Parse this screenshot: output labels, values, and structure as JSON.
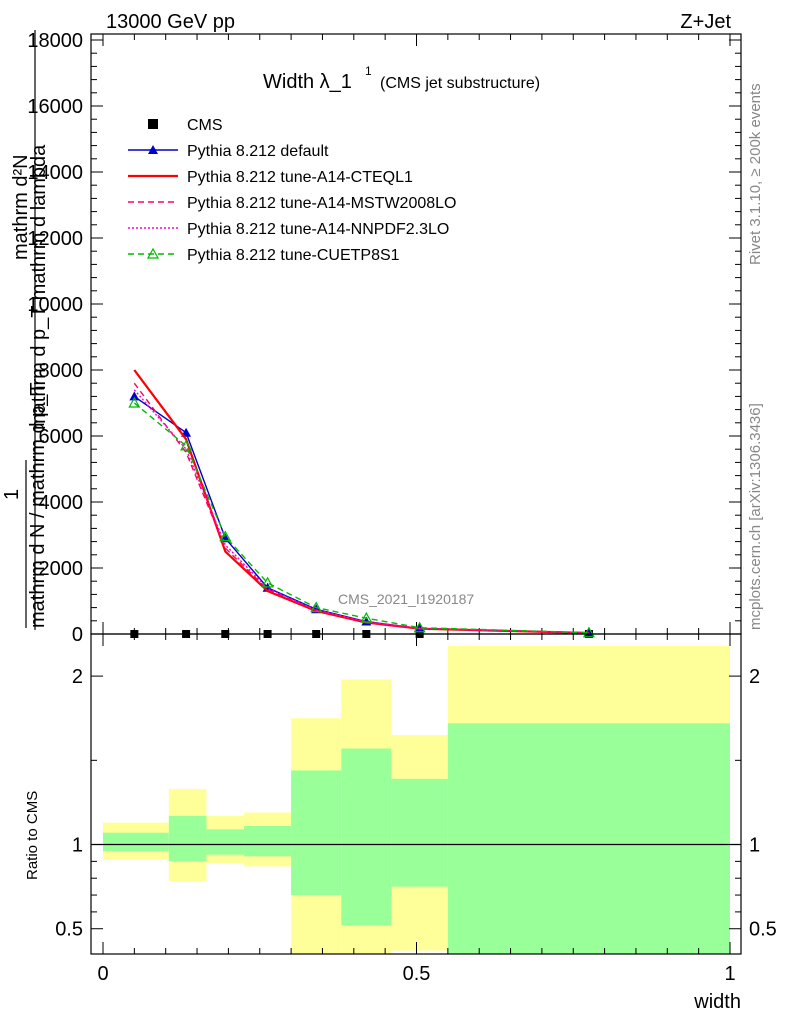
{
  "header": {
    "left": "13000 GeV pp",
    "right": "Z+Jet"
  },
  "side": {
    "rivet": "Rivet 3.1.10, ≥ 200k events",
    "mcplots": "mcplots.cern.ch [arXiv:1306.3436]"
  },
  "watermark": "CMS_2021_I1920187",
  "chart_data": [
    {
      "type": "line",
      "title_main": "Width λ_1",
      "title_sup": "1",
      "title_sub": "(CMS jet substructure)",
      "ylabel_top": "mathrm d²N",
      "ylabel_top2": "mathrm d p_T mathrm d lambda",
      "ylabel_one": "1",
      "ylabel_bottom": "mathrm d N / mathrm d p_T",
      "xlim": [
        0,
        1
      ],
      "ylim": [
        0,
        18000
      ],
      "yticks": [
        "0",
        "2000",
        "4000",
        "6000",
        "8000",
        "10000",
        "12000",
        "14000",
        "16000",
        "18000"
      ],
      "bins": [
        0,
        0.1,
        0.165,
        0.225,
        0.3,
        0.38,
        0.46,
        0.55,
        1.0
      ],
      "series": [
        {
          "name": "CMS",
          "style": "data",
          "color": "#000000",
          "x": [
            0.05,
            0.1325,
            0.195,
            0.2625,
            0.34,
            0.42,
            0.505,
            0.775
          ],
          "y": [
            0,
            0,
            0,
            0,
            0,
            0,
            0,
            0
          ]
        },
        {
          "name": "Pythia 8.212 default",
          "style": "solid-triangle",
          "color": "#0000cc",
          "x": [
            0.05,
            0.1325,
            0.195,
            0.2625,
            0.34,
            0.42,
            0.505,
            0.775
          ],
          "y": [
            7200,
            6100,
            2900,
            1400,
            750,
            380,
            170,
            35
          ]
        },
        {
          "name": "Pythia 8.212 tune-A14-CTEQL1",
          "style": "solid-thick",
          "color": "#ff0000",
          "x": [
            0.05,
            0.1325,
            0.195,
            0.2625,
            0.34,
            0.42,
            0.505,
            0.775
          ],
          "y": [
            8000,
            5900,
            2500,
            1300,
            700,
            350,
            160,
            30
          ]
        },
        {
          "name": "Pythia 8.212 tune-A14-MSTW2008LO",
          "style": "dashed",
          "color": "#ff0066",
          "x": [
            0.05,
            0.1325,
            0.195,
            0.2625,
            0.34,
            0.42,
            0.505,
            0.775
          ],
          "y": [
            7600,
            5500,
            2600,
            1350,
            720,
            360,
            165,
            32
          ]
        },
        {
          "name": "Pythia 8.212 tune-A14-NNPDF2.3LO",
          "style": "dotted",
          "color": "#ff00cc",
          "x": [
            0.05,
            0.1325,
            0.195,
            0.2625,
            0.34,
            0.42,
            0.505,
            0.775
          ],
          "y": [
            7400,
            5600,
            2700,
            1380,
            730,
            370,
            168,
            33
          ]
        },
        {
          "name": "Pythia 8.212 tune-CUETP8S1",
          "style": "dashed-triangle",
          "color": "#00bb00",
          "x": [
            0.05,
            0.1325,
            0.195,
            0.2625,
            0.34,
            0.42,
            0.505,
            0.775
          ],
          "y": [
            7000,
            5700,
            2950,
            1550,
            800,
            480,
            190,
            38
          ]
        }
      ]
    },
    {
      "type": "area",
      "ylabel": "Ratio to CMS",
      "xlabel": "width",
      "xlim": [
        0,
        1
      ],
      "ylim": [
        0.35,
        2.25
      ],
      "xticks": [
        "0",
        "0.5",
        "1"
      ],
      "yticks": [
        "0.5",
        "1",
        "2"
      ],
      "reference": 1.0,
      "bands": [
        {
          "x0": 0.0,
          "x1": 0.105,
          "y_lo": 0.91,
          "y_hi": 1.13,
          "g_lo": 0.96,
          "g_hi": 1.07
        },
        {
          "x0": 0.105,
          "x1": 0.165,
          "y_lo": 0.78,
          "y_hi": 1.33,
          "g_lo": 0.9,
          "g_hi": 1.17
        },
        {
          "x0": 0.165,
          "x1": 0.225,
          "y_lo": 0.89,
          "y_hi": 1.17,
          "g_lo": 0.94,
          "g_hi": 1.09
        },
        {
          "x0": 0.225,
          "x1": 0.3,
          "y_lo": 0.87,
          "y_hi": 1.19,
          "g_lo": 0.93,
          "g_hi": 1.11
        },
        {
          "x0": 0.3,
          "x1": 0.38,
          "y_lo": 0.35,
          "y_hi": 1.75,
          "g_lo": 0.7,
          "g_hi": 1.44
        },
        {
          "x0": 0.38,
          "x1": 0.46,
          "y_lo": 0.35,
          "y_hi": 1.98,
          "g_lo": 0.52,
          "g_hi": 1.57
        },
        {
          "x0": 0.46,
          "x1": 0.55,
          "y_lo": 0.37,
          "y_hi": 1.65,
          "g_lo": 0.75,
          "g_hi": 1.39
        },
        {
          "x0": 0.55,
          "x1": 1.0,
          "y_lo": 0.35,
          "y_hi": 2.18,
          "g_lo": 0.35,
          "g_hi": 1.72
        }
      ],
      "colors": {
        "yellow": "#ffff99",
        "green": "#99ff99"
      }
    }
  ]
}
